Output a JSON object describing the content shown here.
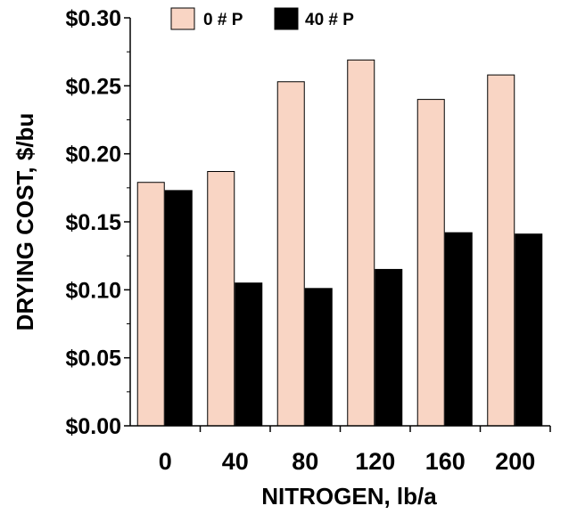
{
  "chart_data": {
    "type": "bar",
    "categories": [
      "0",
      "40",
      "80",
      "120",
      "160",
      "200"
    ],
    "series": [
      {
        "name": "0 # P",
        "values": [
          0.179,
          0.187,
          0.253,
          0.269,
          0.24,
          0.258
        ]
      },
      {
        "name": "40 # P",
        "values": [
          0.173,
          0.105,
          0.101,
          0.115,
          0.142,
          0.141
        ]
      }
    ],
    "title": "",
    "xlabel": "NITROGEN, lb/a",
    "ylabel": "DRYING COST, $/bu",
    "ylim": [
      0,
      0.3
    ],
    "yticks": [
      "$0.00",
      "$0.05",
      "$0.10",
      "$0.15",
      "$0.20",
      "$0.25",
      "$0.30"
    ],
    "grid": false,
    "legend_position": "top",
    "colors": {
      "0 # P": "#f9d5c4",
      "40 # P": "#000000"
    }
  }
}
